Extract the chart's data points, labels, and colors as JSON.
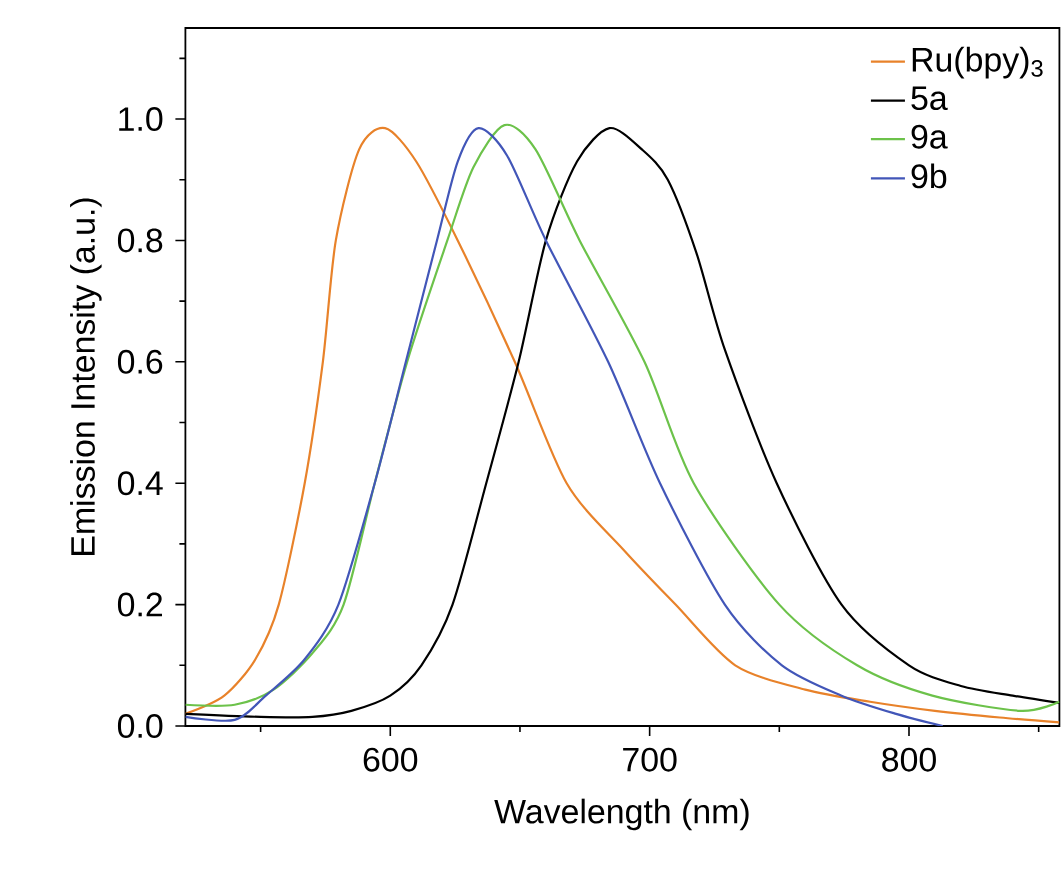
{
  "chart_data": {
    "type": "line",
    "xlabel": "Wavelength (nm)",
    "ylabel": "Emission Intensity (a.u.)",
    "xlim": [
      521,
      858
    ],
    "ylim": [
      0,
      1.15
    ],
    "xticks": [
      {
        "value": 550,
        "label": null
      },
      600,
      {
        "value": 650,
        "label": null
      },
      700,
      {
        "value": 750,
        "label": null
      },
      800,
      {
        "value": 850,
        "label": null
      }
    ],
    "yticks": [
      {
        "value": 0,
        "label": "0.0"
      },
      {
        "value": 0.1,
        "label": null
      },
      0.2,
      {
        "value": 0.3,
        "label": null
      },
      0.4,
      {
        "value": 0.5,
        "label": null
      },
      0.6,
      {
        "value": 0.7,
        "label": null
      },
      0.8,
      {
        "value": 0.9,
        "label": null
      },
      {
        "value": 1,
        "label": "1.0"
      },
      {
        "value": 1.1,
        "label": null
      }
    ],
    "grid": false,
    "legend": "top right",
    "marker": "none",
    "line_style": "solid",
    "series": [
      {
        "name": "Ru(bpy)$_{3}$",
        "color": "#e8822a",
        "x": [
          521,
          536,
          548,
          557,
          567,
          574,
          579,
          588,
          598,
          610,
          626,
          648,
          668,
          690,
          710,
          733,
          760,
          785,
          810,
          835,
          858
        ],
        "values": [
          0.02,
          0.05,
          0.11,
          0.2,
          0.4,
          0.6,
          0.8,
          0.95,
          0.985,
          0.93,
          0.8,
          0.6,
          0.4,
          0.29,
          0.2,
          0.1,
          0.06,
          0.04,
          0.025,
          0.014,
          0.006
        ]
      },
      {
        "name": "5a",
        "color": "#000000",
        "x": [
          521,
          550,
          570,
          585,
          600,
          612,
          624,
          637,
          649.5,
          660,
          672,
          684.5,
          697,
          707,
          718,
          729,
          749,
          774,
          800,
          820,
          840,
          858
        ],
        "values": [
          0.02,
          0.015,
          0.015,
          0.025,
          0.05,
          0.1,
          0.2,
          0.4,
          0.6,
          0.8,
          0.93,
          0.985,
          0.95,
          0.9,
          0.78,
          0.62,
          0.4,
          0.2,
          0.1,
          0.066,
          0.05,
          0.038
        ]
      },
      {
        "name": "9a",
        "color": "#6cc24a",
        "x": [
          521,
          540,
          555,
          570,
          582,
          594,
          606.5,
          622,
          632,
          644,
          656,
          673,
          698,
          717,
          750,
          780,
          809,
          843,
          858
        ],
        "values": [
          0.035,
          0.035,
          0.06,
          0.12,
          0.2,
          0.4,
          0.6,
          0.8,
          0.92,
          0.99,
          0.95,
          0.8,
          0.6,
          0.4,
          0.2,
          0.1,
          0.05,
          0.025,
          0.04
        ]
      },
      {
        "name": "9b",
        "color": "#4256b8",
        "x": [
          521,
          540,
          552,
          567,
          580,
          594,
          606,
          618,
          626,
          634,
          645,
          660,
          684,
          704,
          729,
          751,
          774,
          795,
          813
        ],
        "values": [
          0.015,
          0.01,
          0.05,
          0.11,
          0.2,
          0.4,
          0.6,
          0.8,
          0.93,
          0.985,
          0.94,
          0.8,
          0.6,
          0.4,
          0.2,
          0.1,
          0.05,
          0.02,
          0
        ]
      }
    ]
  }
}
